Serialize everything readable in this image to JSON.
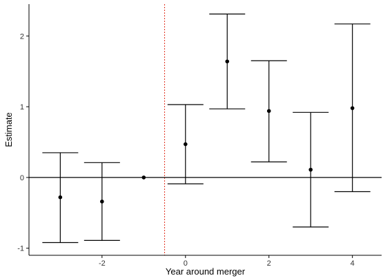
{
  "chart_data": {
    "type": "scatter",
    "style": "point estimates with confidence-interval error bars (event study)",
    "xlabel": "Year around merger",
    "ylabel": "Estimate",
    "xlim": [
      -3.75,
      4.7
    ],
    "ylim": [
      -1.1,
      2.45
    ],
    "x_ticks": [
      -2,
      0,
      2,
      4
    ],
    "x_tick_labels": [
      "-2",
      "0",
      "2",
      "4"
    ],
    "y_ticks": [
      -1,
      0,
      1,
      2
    ],
    "y_tick_labels": [
      "-1",
      "0",
      "1",
      "2"
    ],
    "grid": false,
    "legend": "none",
    "reference_hline_y": 0,
    "reference_vline_x": -0.5,
    "colors": {
      "points": "#000000",
      "error_bars": "#000000",
      "hline": "#000000",
      "vline": "#e0301e",
      "axis": "#000000",
      "tick_text": "#333333"
    },
    "points": [
      {
        "x": -3,
        "estimate": -0.28,
        "ci_low": -0.92,
        "ci_high": 0.35
      },
      {
        "x": -2,
        "estimate": -0.34,
        "ci_low": -0.89,
        "ci_high": 0.21
      },
      {
        "x": -1,
        "estimate": 0.0,
        "ci_low": 0.0,
        "ci_high": 0.0
      },
      {
        "x": 0,
        "estimate": 0.47,
        "ci_low": -0.09,
        "ci_high": 1.03
      },
      {
        "x": 1,
        "estimate": 1.64,
        "ci_low": 0.97,
        "ci_high": 2.31
      },
      {
        "x": 2,
        "estimate": 0.94,
        "ci_low": 0.22,
        "ci_high": 1.65
      },
      {
        "x": 3,
        "estimate": 0.11,
        "ci_low": -0.7,
        "ci_high": 0.92
      },
      {
        "x": 4,
        "estimate": 0.98,
        "ci_low": -0.2,
        "ci_high": 2.17
      }
    ]
  }
}
